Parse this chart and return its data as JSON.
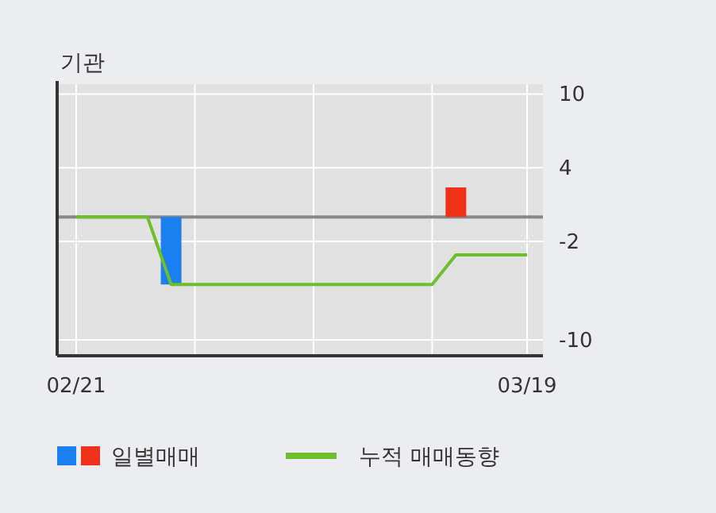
{
  "chart_data": {
    "type": "bar",
    "title": "기관",
    "categories": [
      "02/21",
      null,
      null,
      null,
      null,
      null,
      null,
      null,
      null,
      null,
      null,
      null,
      null,
      null,
      null,
      null,
      null,
      null,
      null,
      "03/19"
    ],
    "series": [
      {
        "name": "일별매매",
        "colors": [
          "#1a7ff0",
          "#1a7ff0",
          "#1a7ff0",
          "#1a7ff0",
          "#1a7ff0",
          "#1a7ff0",
          "#1a7ff0",
          "#1a7ff0",
          "#1a7ff0",
          "#1a7ff0",
          "#1a7ff0",
          "#1a7ff0",
          "#1a7ff0",
          "#1a7ff0",
          "#1a7ff0",
          "#1a7ff0",
          "#f0311a",
          "#1a7ff0",
          "#1a7ff0",
          "#1a7ff0"
        ],
        "values": [
          0,
          0,
          0,
          0,
          -5.5,
          0,
          0,
          0,
          0,
          0,
          0,
          0,
          0,
          0,
          0,
          0,
          2.4,
          0,
          0,
          0
        ]
      },
      {
        "name": "누적 매매동향",
        "type": "line",
        "color": "#6abf2a",
        "values": [
          0,
          0,
          0,
          0,
          -5.5,
          -5.5,
          -5.5,
          -5.5,
          -5.5,
          -5.5,
          -5.5,
          -5.5,
          -5.5,
          -5.5,
          -5.5,
          -5.5,
          -3.1,
          -3.1,
          -3.1,
          -3.1
        ]
      }
    ],
    "ylim": [
      -11.3,
      10.8
    ],
    "yticks": [
      10,
      4,
      -2,
      -10
    ],
    "grid": true,
    "legend": "bottom",
    "ref_lines": [
      {
        "axis": "y",
        "value": 0,
        "color": "#888888"
      }
    ]
  }
}
